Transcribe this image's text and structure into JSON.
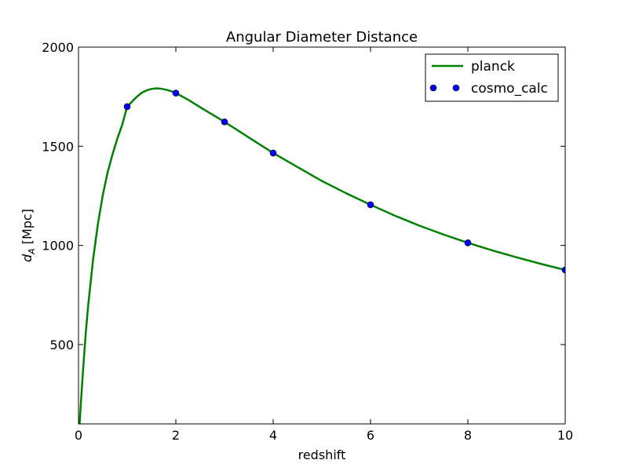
{
  "chart_data": {
    "type": "line",
    "title": "Angular Diameter Distance",
    "xlabel": "redshift",
    "ylabel_main": "d",
    "ylabel_sub": "A",
    "ylabel_unit": " [Mpc]",
    "xlim": [
      0,
      10
    ],
    "ylim": [
      100,
      2000
    ],
    "xticks": [
      0,
      2,
      4,
      6,
      8,
      10
    ],
    "xtick_labels": [
      "0",
      "2",
      "4",
      "6",
      "8",
      "10"
    ],
    "yticks": [
      500,
      1000,
      1500,
      2000
    ],
    "ytick_labels": [
      "500",
      "1000",
      "1500",
      "2000"
    ],
    "grid": false,
    "legend_position": "top-right",
    "series": [
      {
        "name": "planck",
        "kind": "line",
        "color": "#008000",
        "x": [
          0.0,
          0.02,
          0.05,
          0.1,
          0.15,
          0.2,
          0.3,
          0.4,
          0.5,
          0.6,
          0.7,
          0.8,
          0.9,
          1.0,
          1.1,
          1.2,
          1.3,
          1.4,
          1.5,
          1.6,
          1.7,
          1.8,
          1.9,
          2.0,
          2.25,
          2.5,
          2.75,
          3.0,
          3.5,
          4.0,
          4.5,
          5.0,
          5.5,
          6.0,
          6.5,
          7.0,
          7.5,
          8.0,
          8.5,
          9.0,
          9.5,
          10.0
        ],
        "y": [
          0,
          90,
          210,
          395,
          560,
          700,
          930,
          1110,
          1255,
          1370,
          1460,
          1540,
          1610,
          1700,
          1725,
          1750,
          1770,
          1782,
          1789,
          1792,
          1790,
          1785,
          1778,
          1768,
          1735,
          1697,
          1660,
          1623,
          1544,
          1466,
          1395,
          1325,
          1263,
          1205,
          1150,
          1100,
          1055,
          1013,
          975,
          940,
          907,
          876
        ]
      },
      {
        "name": "cosmo_calc",
        "kind": "markers",
        "color": "#0000ff",
        "x": [
          1,
          2,
          3,
          4,
          6,
          8,
          10
        ],
        "y": [
          1700,
          1768,
          1623,
          1466,
          1205,
          1013,
          876
        ]
      }
    ]
  }
}
